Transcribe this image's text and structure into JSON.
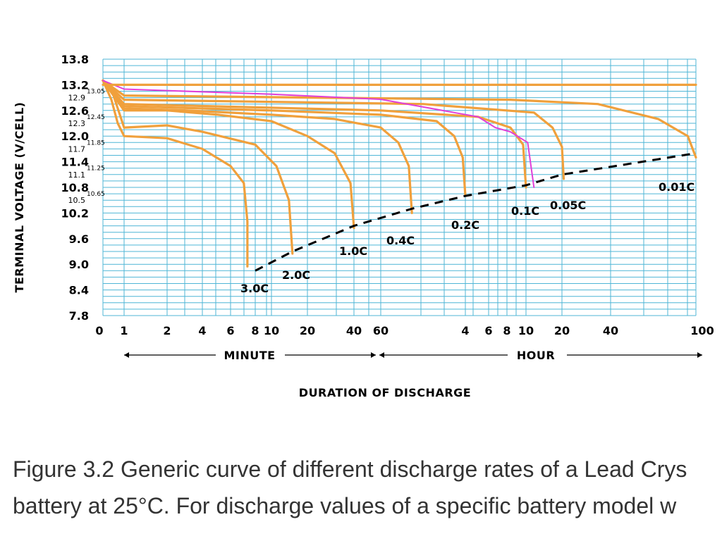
{
  "chart_data": {
    "type": "line",
    "title": "",
    "ylabel": "TERMINAL VOLTAGE (V/CELL)",
    "xlabel": "DURATION OF DISCHARGE",
    "x_unit_labels": [
      {
        "label": "MINUTE",
        "range": [
          1,
          60
        ]
      },
      {
        "label": "HOUR",
        "range": [
          60,
          6000
        ]
      }
    ],
    "x_ticks": [
      {
        "label": "0",
        "minutes": 0
      },
      {
        "label": "1",
        "minutes": 1
      },
      {
        "label": "2",
        "minutes": 2
      },
      {
        "label": "4",
        "minutes": 4
      },
      {
        "label": "6",
        "minutes": 6
      },
      {
        "label": "8",
        "minutes": 8
      },
      {
        "label": "10",
        "minutes": 10
      },
      {
        "label": "20",
        "minutes": 20
      },
      {
        "label": "40",
        "minutes": 40
      },
      {
        "label": "60",
        "minutes": 60
      },
      {
        "label": "4",
        "minutes": 240
      },
      {
        "label": "6",
        "minutes": 360
      },
      {
        "label": "8",
        "minutes": 480
      },
      {
        "label": "10",
        "minutes": 600
      },
      {
        "label": "20",
        "minutes": 1200
      },
      {
        "label": "40",
        "minutes": 2400
      },
      {
        "label": "100",
        "minutes": 6000
      }
    ],
    "y_ticks_major": [
      "13.8",
      "13.2",
      "12.6",
      "12.0",
      "11.4",
      "10.8",
      "10.2",
      "9.6",
      "9.0",
      "8.4",
      "7.8"
    ],
    "y_ticks_minor": [
      "12.9",
      "12.3",
      "11.7",
      "11.1",
      "10.5"
    ],
    "y_ticks_sub": [
      "13.05",
      "12.45",
      "11.85",
      "11.25",
      "10.65"
    ],
    "ylim": [
      7.8,
      13.8
    ],
    "grid": true,
    "series": [
      {
        "name": "3.0C",
        "points": [
          [
            0,
            13.3
          ],
          [
            0.4,
            12.85
          ],
          [
            0.7,
            12.3
          ],
          [
            1,
            12.0
          ],
          [
            2,
            11.95
          ],
          [
            4,
            11.7
          ],
          [
            6,
            11.3
          ],
          [
            7,
            10.9
          ],
          [
            7.3,
            10.0
          ],
          [
            7.3,
            8.95
          ]
        ]
      },
      {
        "name": "2.0C",
        "points": [
          [
            0,
            13.3
          ],
          [
            0.5,
            12.95
          ],
          [
            1,
            12.2
          ],
          [
            2,
            12.25
          ],
          [
            4,
            12.1
          ],
          [
            8,
            11.8
          ],
          [
            11,
            11.3
          ],
          [
            14,
            10.5
          ],
          [
            15,
            9.25
          ]
        ]
      },
      {
        "name": "1.0C",
        "points": [
          [
            0,
            13.3
          ],
          [
            1,
            12.6
          ],
          [
            2,
            12.6
          ],
          [
            5,
            12.5
          ],
          [
            10,
            12.35
          ],
          [
            20,
            12.0
          ],
          [
            30,
            11.6
          ],
          [
            38,
            10.9
          ],
          [
            40,
            9.85
          ]
        ]
      },
      {
        "name": "0.4C",
        "points": [
          [
            0,
            13.3
          ],
          [
            1,
            12.65
          ],
          [
            3,
            12.6
          ],
          [
            10,
            12.5
          ],
          [
            30,
            12.4
          ],
          [
            60,
            12.2
          ],
          [
            80,
            11.85
          ],
          [
            95,
            11.3
          ],
          [
            100,
            10.2
          ]
        ]
      },
      {
        "name": "0.2C",
        "points": [
          [
            0,
            13.3
          ],
          [
            1,
            12.7
          ],
          [
            10,
            12.6
          ],
          [
            60,
            12.5
          ],
          [
            150,
            12.35
          ],
          [
            200,
            12.0
          ],
          [
            230,
            11.5
          ],
          [
            240,
            10.6
          ]
        ]
      },
      {
        "name": "0.1C",
        "points": [
          [
            0,
            13.3
          ],
          [
            1,
            12.75
          ],
          [
            60,
            12.6
          ],
          [
            300,
            12.45
          ],
          [
            500,
            12.2
          ],
          [
            580,
            11.8
          ],
          [
            600,
            10.8
          ]
        ]
      },
      {
        "name": "0.05C",
        "points": [
          [
            0,
            13.3
          ],
          [
            1,
            12.85
          ],
          [
            120,
            12.75
          ],
          [
            700,
            12.55
          ],
          [
            1000,
            12.2
          ],
          [
            1200,
            11.75
          ],
          [
            1230,
            11.0
          ]
        ]
      },
      {
        "name": "0.01C",
        "points": [
          [
            0,
            13.3
          ],
          [
            1,
            12.95
          ],
          [
            500,
            12.85
          ],
          [
            2000,
            12.75
          ],
          [
            4000,
            12.4
          ],
          [
            5500,
            12.0
          ],
          [
            6000,
            11.5
          ]
        ]
      },
      {
        "name": "",
        "points": [
          [
            0,
            13.3
          ],
          [
            1,
            13.1
          ],
          [
            10,
            12.98
          ],
          [
            60,
            12.86
          ],
          [
            200,
            12.55
          ],
          [
            300,
            12.45
          ],
          [
            400,
            12.2
          ],
          [
            500,
            12.1
          ],
          [
            620,
            11.85
          ],
          [
            700,
            10.8
          ]
        ]
      },
      {
        "name": "",
        "points": [
          [
            0,
            13.2
          ],
          [
            6000,
            13.2
          ]
        ]
      }
    ],
    "end_voltage_line": [
      [
        8,
        8.85
      ],
      [
        15,
        9.3
      ],
      [
        40,
        9.9
      ],
      [
        100,
        10.3
      ],
      [
        240,
        10.6
      ],
      [
        600,
        10.85
      ],
      [
        1200,
        11.1
      ],
      [
        6000,
        11.6
      ]
    ],
    "colors": {
      "curves": "#f0a03c",
      "highlight": "#e040d8",
      "grid": "#4fb6d6",
      "end_line": "#000000"
    }
  },
  "rate_labels": {
    "c30": "3.0C",
    "c20": "2.0C",
    "c10": "1.0C",
    "c04": "0.4C",
    "c02": "0.2C",
    "c01": "0.1C",
    "c005": "0.05C",
    "c001": "0.01C"
  },
  "caption": {
    "line1": "Figure 3.2 Generic curve of different discharge rates of a Lead Crys",
    "line2": "battery at 25°C. For discharge values of a specific battery model w"
  }
}
